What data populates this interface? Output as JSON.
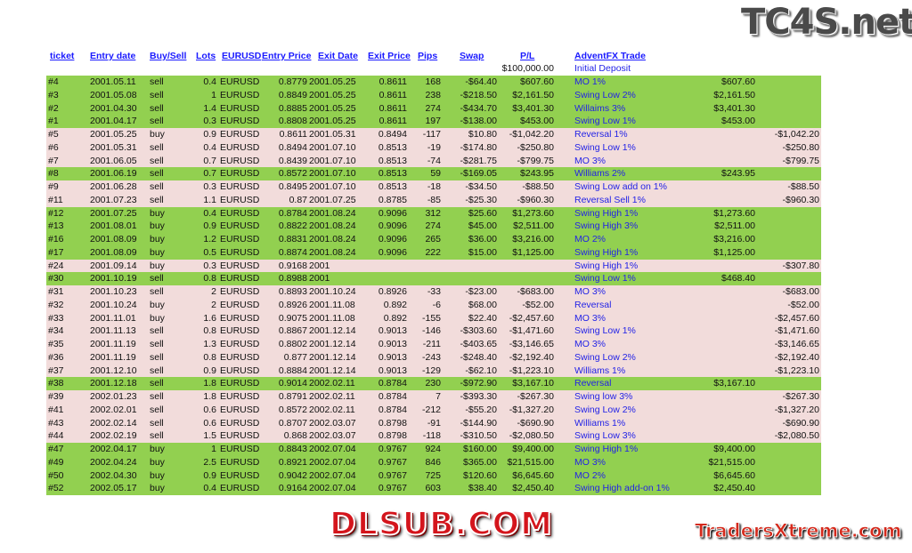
{
  "logos": {
    "top": "TC4S.net",
    "center": "DLSUB.COM",
    "bottom": "TradersXtreme.com"
  },
  "colors": {
    "win": "#92d050",
    "loss": "#f2dcdb",
    "link": "#1a1aff"
  },
  "headers": [
    "ticket",
    "Entry date",
    "Buy/Sell",
    "Lots",
    "EURUSD",
    "Entry Price",
    "Exit Date",
    "Exit Price",
    "Pips",
    "Swap",
    "P/L",
    "AdventFX Trade"
  ],
  "deposit": {
    "amount": "$100,000.00",
    "label": "Initial Deposit"
  },
  "rows": [
    {
      "r": "win",
      "c": [
        "#4",
        "2001.05.11",
        "sell",
        "0.4",
        "EURUSD",
        "0.8779",
        "2001.05.25",
        "0.8611",
        "168",
        "-$64.40",
        "$607.60",
        "MO 1%",
        "$607.60",
        ""
      ]
    },
    {
      "r": "win",
      "c": [
        "#3",
        "2001.05.08",
        "sell",
        "1",
        "EURUSD",
        "0.8849",
        "2001.05.25",
        "0.8611",
        "238",
        "-$218.50",
        "$2,161.50",
        "Swing Low 2%",
        "$2,161.50",
        ""
      ]
    },
    {
      "r": "win",
      "c": [
        "#2",
        "2001.04.30",
        "sell",
        "1.4",
        "EURUSD",
        "0.8885",
        "2001.05.25",
        "0.8611",
        "274",
        "-$434.70",
        "$3,401.30",
        "Willaims 3%",
        "$3,401.30",
        ""
      ]
    },
    {
      "r": "win",
      "c": [
        "#1",
        "2001.04.17",
        "sell",
        "0.3",
        "EURUSD",
        "0.8808",
        "2001.05.25",
        "0.8611",
        "197",
        "-$138.00",
        "$453.00",
        "Swing Low 1%",
        "$453.00",
        ""
      ]
    },
    {
      "r": "loss",
      "c": [
        "#5",
        "2001.05.25",
        "buy",
        "0.9",
        "EURUSD",
        "0.8611",
        "2001.05.31",
        "0.8494",
        "-117",
        "$10.80",
        "-$1,042.20",
        "Reversal 1%",
        "",
        "-$1,042.20"
      ]
    },
    {
      "r": "loss",
      "c": [
        "#6",
        "2001.05.31",
        "sell",
        "0.4",
        "EURUSD",
        "0.8494",
        "2001.07.10",
        "0.8513",
        "-19",
        "-$174.80",
        "-$250.80",
        "Swing Low 1%",
        "",
        "-$250.80"
      ]
    },
    {
      "r": "loss",
      "c": [
        "#7",
        "2001.06.05",
        "sell",
        "0.7",
        "EURUSD",
        "0.8439",
        "2001.07.10",
        "0.8513",
        "-74",
        "-$281.75",
        "-$799.75",
        "MO 3%",
        "",
        "-$799.75"
      ]
    },
    {
      "r": "win",
      "c": [
        "#8",
        "2001.06.19",
        "sell",
        "0.7",
        "EURUSD",
        "0.8572",
        "2001.07.10",
        "0.8513",
        "59",
        "-$169.05",
        "$243.95",
        "Williams 2%",
        "$243.95",
        ""
      ]
    },
    {
      "r": "loss",
      "c": [
        "#9",
        "2001.06.28",
        "sell",
        "0.3",
        "EURUSD",
        "0.8495",
        "2001.07.10",
        "0.8513",
        "-18",
        "-$34.50",
        "-$88.50",
        "Swing Low add on 1%",
        "",
        "-$88.50"
      ]
    },
    {
      "r": "loss",
      "c": [
        "#11",
        "2001.07.23",
        "sell",
        "1.1",
        "EURUSD",
        "0.87",
        "2001.07.25",
        "0.8785",
        "-85",
        "-$25.30",
        "-$960.30",
        "Reversal Sell 1%",
        "",
        "-$960.30"
      ]
    },
    {
      "r": "win",
      "c": [
        "#12",
        "2001.07.25",
        "buy",
        "0.4",
        "EURUSD",
        "0.8784",
        "2001.08.24",
        "0.9096",
        "312",
        "$25.60",
        "$1,273.60",
        "Swing High 1%",
        "$1,273.60",
        ""
      ]
    },
    {
      "r": "win",
      "c": [
        "#13",
        "2001.08.01",
        "buy",
        "0.9",
        "EURUSD",
        "0.8822",
        "2001.08.24",
        "0.9096",
        "274",
        "$45.00",
        "$2,511.00",
        "Swing High 3%",
        "$2,511.00",
        ""
      ]
    },
    {
      "r": "win",
      "c": [
        "#16",
        "2001.08.09",
        "buy",
        "1.2",
        "EURUSD",
        "0.8831",
        "2001.08.24",
        "0.9096",
        "265",
        "$36.00",
        "$3,216.00",
        "MO 2%",
        "$3,216.00",
        ""
      ]
    },
    {
      "r": "win",
      "c": [
        "#17",
        "2001.08.09",
        "buy",
        "0.5",
        "EURUSD",
        "0.8874",
        "2001.08.24",
        "0.9096",
        "222",
        "$15.00",
        "$1,125.00",
        "Swing High 1%",
        "$1,125.00",
        ""
      ]
    },
    {
      "r": "loss",
      "c": [
        "#24",
        "2001.09.14",
        "buy",
        "0.3",
        "EURUSD",
        "0.9168",
        "2001",
        "",
        "",
        "",
        "",
        "Swing High 1%",
        "",
        "-$307.80"
      ]
    },
    {
      "r": "win",
      "c": [
        "#30",
        "2001.10.19",
        "sell",
        "0.8",
        "EURUSD",
        "0.8988",
        "2001",
        "",
        "",
        "",
        "",
        "Swing Low 1%",
        "$468.40",
        ""
      ]
    },
    {
      "r": "loss",
      "c": [
        "#31",
        "2001.10.23",
        "sell",
        "2",
        "EURUSD",
        "0.8893",
        "2001.10.24",
        "0.8926",
        "-33",
        "-$23.00",
        "-$683.00",
        "MO 3%",
        "",
        "-$683.00"
      ]
    },
    {
      "r": "loss",
      "c": [
        "#32",
        "2001.10.24",
        "buy",
        "2",
        "EURUSD",
        "0.8926",
        "2001.11.08",
        "0.892",
        "-6",
        "$68.00",
        "-$52.00",
        "Reversal",
        "",
        "-$52.00"
      ]
    },
    {
      "r": "loss",
      "c": [
        "#33",
        "2001.11.01",
        "buy",
        "1.6",
        "EURUSD",
        "0.9075",
        "2001.11.08",
        "0.892",
        "-155",
        "$22.40",
        "-$2,457.60",
        "MO 3%",
        "",
        "-$2,457.60"
      ]
    },
    {
      "r": "loss",
      "c": [
        "#34",
        "2001.11.13",
        "sell",
        "0.8",
        "EURUSD",
        "0.8867",
        "2001.12.14",
        "0.9013",
        "-146",
        "-$303.60",
        "-$1,471.60",
        "Swing Low 1%",
        "",
        "-$1,471.60"
      ]
    },
    {
      "r": "loss",
      "c": [
        "#35",
        "2001.11.19",
        "sell",
        "1.3",
        "EURUSD",
        "0.8802",
        "2001.12.14",
        "0.9013",
        "-211",
        "-$403.65",
        "-$3,146.65",
        "MO 3%",
        "",
        "-$3,146.65"
      ]
    },
    {
      "r": "loss",
      "c": [
        "#36",
        "2001.11.19",
        "sell",
        "0.8",
        "EURUSD",
        "0.877",
        "2001.12.14",
        "0.9013",
        "-243",
        "-$248.40",
        "-$2,192.40",
        "Swing Low 2%",
        "",
        "-$2,192.40"
      ]
    },
    {
      "r": "loss",
      "c": [
        "#37",
        "2001.12.10",
        "sell",
        "0.9",
        "EURUSD",
        "0.8884",
        "2001.12.14",
        "0.9013",
        "-129",
        "-$62.10",
        "-$1,223.10",
        "Williams 1%",
        "",
        "-$1,223.10"
      ]
    },
    {
      "r": "win",
      "c": [
        "#38",
        "2001.12.18",
        "sell",
        "1.8",
        "EURUSD",
        "0.9014",
        "2002.02.11",
        "0.8784",
        "230",
        "-$972.90",
        "$3,167.10",
        "Reversal",
        "$3,167.10",
        ""
      ]
    },
    {
      "r": "loss",
      "c": [
        "#39",
        "2002.01.23",
        "sell",
        "1.8",
        "EURUSD",
        "0.8791",
        "2002.02.11",
        "0.8784",
        "7",
        "-$393.30",
        "-$267.30",
        "Swing low 3%",
        "",
        "-$267.30"
      ]
    },
    {
      "r": "loss",
      "c": [
        "#41",
        "2002.02.01",
        "sell",
        "0.6",
        "EURUSD",
        "0.8572",
        "2002.02.11",
        "0.8784",
        "-212",
        "-$55.20",
        "-$1,327.20",
        "Swing Low 2%",
        "",
        "-$1,327.20"
      ]
    },
    {
      "r": "loss",
      "c": [
        "#43",
        "2002.02.14",
        "sell",
        "0.6",
        "EURUSD",
        "0.8707",
        "2002.03.07",
        "0.8798",
        "-91",
        "-$144.90",
        "-$690.90",
        "Williams 1%",
        "",
        "-$690.90"
      ]
    },
    {
      "r": "loss",
      "c": [
        "#44",
        "2002.02.19",
        "sell",
        "1.5",
        "EURUSD",
        "0.868",
        "2002.03.07",
        "0.8798",
        "-118",
        "-$310.50",
        "-$2,080.50",
        "Swing Low 3%",
        "",
        "-$2,080.50"
      ]
    },
    {
      "r": "win",
      "c": [
        "#47",
        "2002.04.17",
        "buy",
        "1",
        "EURUSD",
        "0.8843",
        "2002.07.04",
        "0.9767",
        "924",
        "$160.00",
        "$9,400.00",
        "Swing High 1%",
        "$9,400.00",
        ""
      ]
    },
    {
      "r": "win",
      "c": [
        "#49",
        "2002.04.24",
        "buy",
        "2.5",
        "EURUSD",
        "0.8921",
        "2002.07.04",
        "0.9767",
        "846",
        "$365.00",
        "$21,515.00",
        "MO 3%",
        "$21,515.00",
        ""
      ]
    },
    {
      "r": "win",
      "c": [
        "#50",
        "2002.04.30",
        "buy",
        "0.9",
        "EURUSD",
        "0.9042",
        "2002.07.04",
        "0.9767",
        "725",
        "$120.60",
        "$6,645.60",
        "MO 2%",
        "$6,645.60",
        ""
      ]
    },
    {
      "r": "win",
      "c": [
        "#52",
        "2002.05.17",
        "buy",
        "0.4",
        "EURUSD",
        "0.9164",
        "2002.07.04",
        "0.9767",
        "603",
        "$38.40",
        "$2,450.40",
        "Swing High add-on 1%",
        "$2,450.40",
        ""
      ]
    }
  ]
}
